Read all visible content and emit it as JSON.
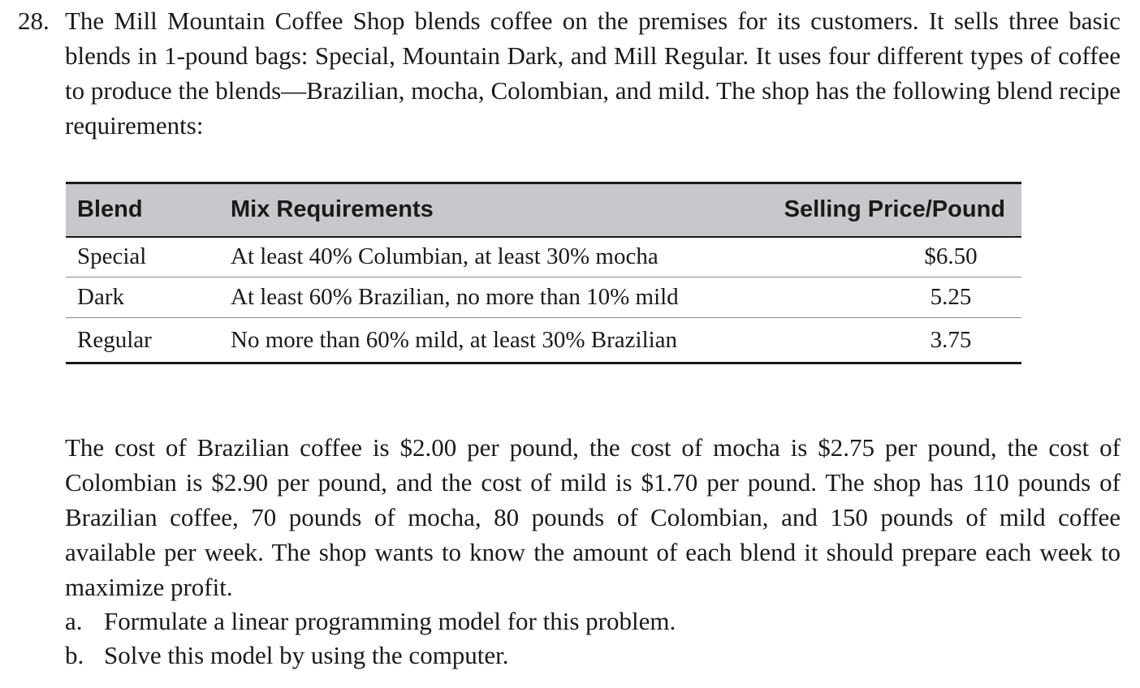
{
  "problem": {
    "number": "28.",
    "intro": "The Mill Mountain Coffee Shop blends coffee on the premises for its customers. It sells three basic blends in 1-pound bags: Special, Mountain Dark, and Mill Regular. It uses four different types of coffee to produce the blends—Brazilian, mocha, Colombian, and mild. The shop has the following blend recipe requirements:",
    "costs_paragraph": "The cost of Brazilian coffee is $2.00 per pound, the cost of mocha is $2.75 per pound, the cost of Colombian is $2.90 per pound, and the cost of mild is $1.70 per pound. The shop has 110 pounds of Brazilian coffee, 70 pounds of mocha, 80 pounds of Colombian, and 150 pounds of mild coffee available per week. The shop wants to know the amount of each blend it should prepare each week to maximize profit."
  },
  "table": {
    "headers": {
      "blend": "Blend",
      "mix": "Mix Requirements",
      "price": "Selling Price/Pound"
    },
    "rows": [
      {
        "blend": "Special",
        "mix": "At least 40% Columbian, at least 30% mocha",
        "price": "$6.50"
      },
      {
        "blend": "Dark",
        "mix": "At least 60% Brazilian, no more than 10% mild",
        "price": "5.25"
      },
      {
        "blend": "Regular",
        "mix": "No more than 60% mild, at least 30% Brazilian",
        "price": "3.75"
      }
    ]
  },
  "parts": [
    {
      "letter": "a.",
      "text": "Formulate a linear programming model for this problem."
    },
    {
      "letter": "b.",
      "text": "Solve this model by using the computer."
    }
  ],
  "colors": {
    "header_background": "#c9c7cc",
    "rule": "#1a1a1a"
  }
}
